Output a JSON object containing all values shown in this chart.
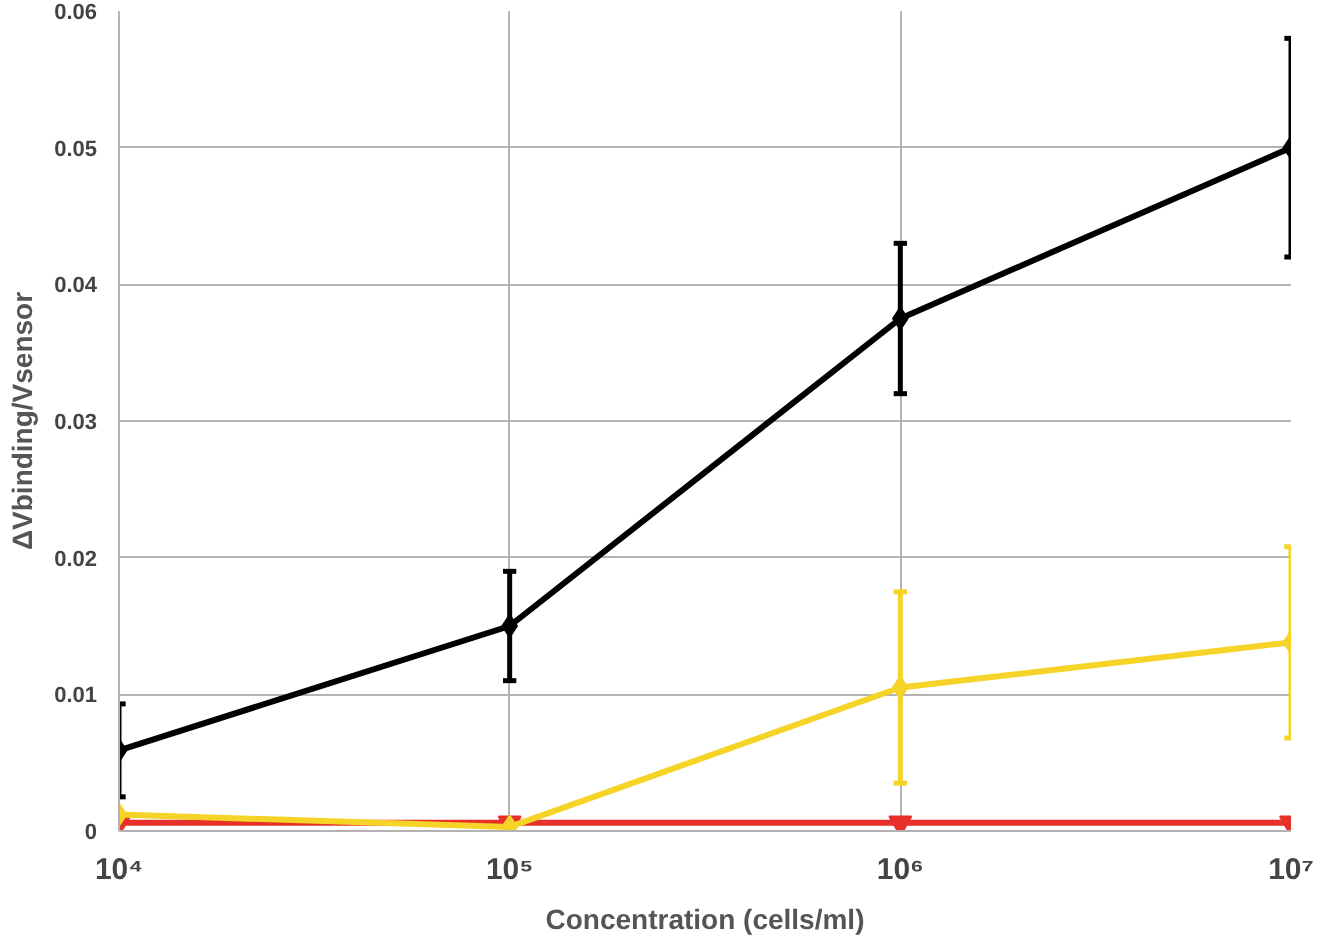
{
  "chart_data": {
    "type": "line",
    "xlabel": "Concentration (cells/ml)",
    "ylabel": "ΔVbinding/Vsensor",
    "log": "x",
    "grid": true,
    "x": [
      10000,
      100000,
      1000000,
      10000000
    ],
    "xlim": [
      10000,
      10000000
    ],
    "xticks": [
      {
        "value": 10000,
        "label": "10⁴"
      },
      {
        "value": 100000,
        "label": "10⁵"
      },
      {
        "value": 1000000,
        "label": "10⁶"
      },
      {
        "value": 10000000,
        "label": "10⁷"
      }
    ],
    "ylim": [
      0,
      0.06
    ],
    "yticks": [
      0,
      0.01,
      0.02,
      0.03,
      0.04,
      0.05,
      0.06
    ],
    "series": [
      {
        "color": "#000000",
        "marker": "diamond",
        "values": [
          0.0059,
          0.015,
          0.0375,
          0.05
        ],
        "errors": [
          0.0034,
          0.004,
          0.0055,
          0.008
        ]
      },
      {
        "color": "#f5d327",
        "marker": "diamond",
        "values": [
          0.0012,
          0.0003,
          0.0105,
          0.0138
        ],
        "errors": [
          null,
          null,
          0.007,
          0.007
        ]
      },
      {
        "color": "#e8302a",
        "marker": "triangle",
        "values": [
          0.0006,
          0.0006,
          0.0006,
          0.0006
        ]
      }
    ]
  }
}
